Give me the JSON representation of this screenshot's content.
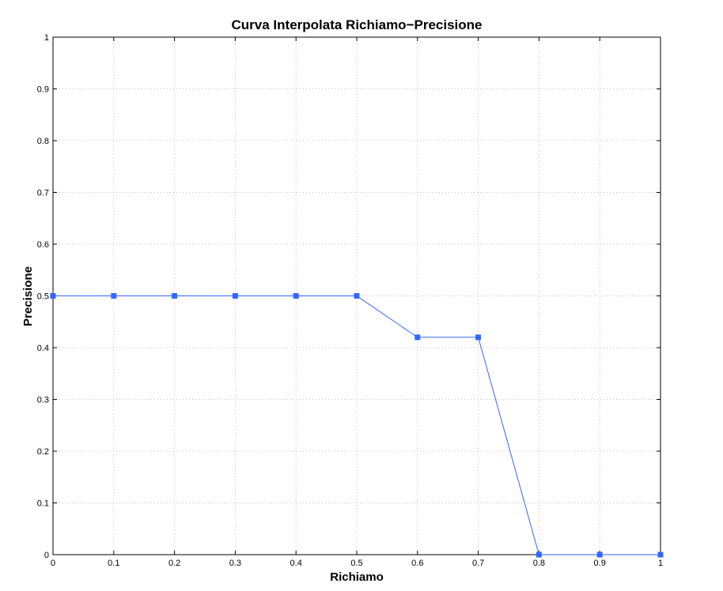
{
  "chart_data": {
    "type": "line",
    "title": "Curva Interpolata Richiamo−Precisione",
    "xlabel": "Richiamo",
    "ylabel": "Precisione",
    "xlim": [
      0,
      1
    ],
    "ylim": [
      0,
      1
    ],
    "grid": true,
    "xticks": [
      "0",
      "0.1",
      "0.2",
      "0.3",
      "0.4",
      "0.5",
      "0.6",
      "0.7",
      "0.8",
      "0.9",
      "1"
    ],
    "yticks": [
      "0",
      "0.1",
      "0.2",
      "0.3",
      "0.4",
      "0.5",
      "0.6",
      "0.7",
      "0.8",
      "0.9",
      "1"
    ],
    "series": [
      {
        "x": [
          0,
          0.1,
          0.2,
          0.3,
          0.4,
          0.5,
          0.6,
          0.7,
          0.8,
          0.9,
          1.0
        ],
        "y": [
          0.5,
          0.5,
          0.5,
          0.5,
          0.5,
          0.5,
          0.42,
          0.42,
          0,
          0,
          0
        ],
        "color": "#3366ff",
        "marker": "square"
      }
    ]
  }
}
